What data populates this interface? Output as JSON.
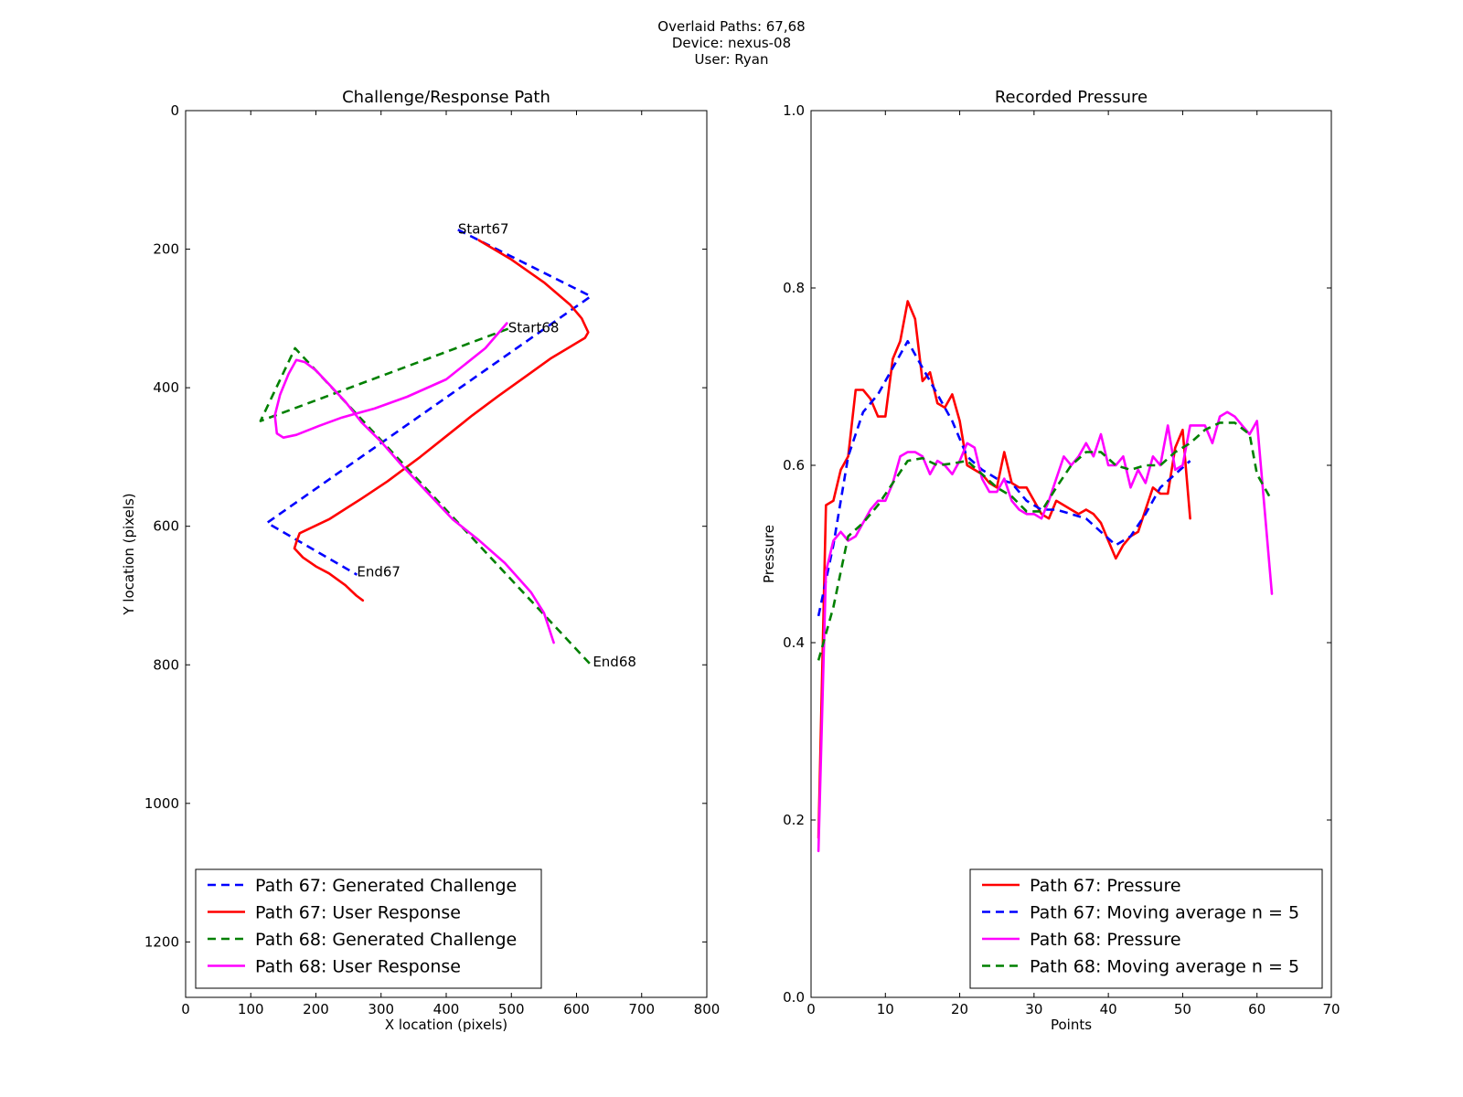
{
  "header": {
    "lines": [
      "Overlaid Paths: 67,68",
      "Device: nexus-08",
      "User: Ryan"
    ]
  },
  "chart_data": [
    {
      "type": "line",
      "title": "Challenge/Response Path",
      "xlabel": "X location (pixels)",
      "ylabel": "Y location (pixels)",
      "xlim": [
        0,
        800
      ],
      "ylim": [
        1280,
        0
      ],
      "y_inverted": true,
      "xticks": [
        0,
        100,
        200,
        300,
        400,
        500,
        600,
        700,
        800
      ],
      "yticks": [
        0,
        200,
        400,
        600,
        800,
        1000,
        1200
      ],
      "grid": false,
      "legend": "lower-left",
      "annotations": [
        {
          "text": "Start67",
          "x": 418,
          "y": 172
        },
        {
          "text": "Start68",
          "x": 495,
          "y": 315
        },
        {
          "text": "End67",
          "x": 263,
          "y": 667
        },
        {
          "text": "End68",
          "x": 625,
          "y": 797
        }
      ],
      "series": [
        {
          "name": "Path 67: Generated Challenge",
          "color": "#0000ff",
          "dashed": true,
          "x": [
            418,
            622,
            125,
            263
          ],
          "y": [
            172,
            268,
            595,
            670
          ]
        },
        {
          "name": "Path 67: User Response",
          "color": "#ff0000",
          "dashed": false,
          "x": [
            450,
            500,
            550,
            590,
            608,
            618,
            613,
            560,
            520,
            480,
            440,
            400,
            360,
            310,
            270,
            220,
            175,
            170,
            167,
            180,
            200,
            220,
            245,
            262,
            272
          ],
          "y": [
            187,
            215,
            248,
            280,
            300,
            320,
            328,
            358,
            385,
            412,
            440,
            470,
            500,
            535,
            560,
            590,
            610,
            623,
            632,
            645,
            658,
            668,
            685,
            700,
            707
          ]
        },
        {
          "name": "Path 68: Generated Challenge",
          "color": "#008000",
          "dashed": true,
          "x": [
            495,
            115,
            168,
            625
          ],
          "y": [
            315,
            448,
            343,
            803
          ]
        },
        {
          "name": "Path 68: User Response",
          "color": "#ff00ff",
          "dashed": false,
          "x": [
            493,
            460,
            400,
            340,
            290,
            240,
            205,
            170,
            150,
            140,
            137,
            145,
            158,
            170,
            183,
            200,
            220,
            245,
            270,
            300,
            330,
            370,
            410,
            450,
            490,
            530,
            550,
            565
          ],
          "y": [
            307,
            343,
            388,
            413,
            430,
            443,
            455,
            468,
            472,
            466,
            440,
            410,
            380,
            360,
            363,
            375,
            395,
            420,
            450,
            478,
            510,
            550,
            590,
            620,
            653,
            695,
            725,
            768
          ]
        }
      ]
    },
    {
      "type": "line",
      "title": "Recorded Pressure",
      "xlabel": "Points",
      "ylabel": "Pressure",
      "xlim": [
        0,
        70
      ],
      "ylim": [
        0.0,
        1.0
      ],
      "xticks": [
        0,
        10,
        20,
        30,
        40,
        50,
        60,
        70
      ],
      "yticks": [
        0.0,
        0.2,
        0.4,
        0.6,
        0.8,
        1.0
      ],
      "grid": false,
      "legend": "lower-right",
      "series": [
        {
          "name": "Path 67: Pressure",
          "color": "#ff0000",
          "dashed": false,
          "x": [
            1,
            2,
            3,
            4,
            5,
            6,
            7,
            8,
            9,
            10,
            11,
            12,
            13,
            14,
            15,
            16,
            17,
            18,
            19,
            20,
            21,
            22,
            23,
            24,
            25,
            26,
            27,
            28,
            29,
            30,
            31,
            32,
            33,
            34,
            35,
            36,
            37,
            38,
            39,
            40,
            41,
            42,
            43,
            44,
            45,
            46,
            47,
            48,
            49,
            50,
            51
          ],
          "y": [
            0.18,
            0.555,
            0.56,
            0.595,
            0.61,
            0.685,
            0.685,
            0.675,
            0.655,
            0.655,
            0.72,
            0.74,
            0.785,
            0.765,
            0.695,
            0.705,
            0.67,
            0.665,
            0.68,
            0.65,
            0.6,
            0.595,
            0.59,
            0.58,
            0.575,
            0.615,
            0.58,
            0.575,
            0.575,
            0.56,
            0.545,
            0.54,
            0.56,
            0.555,
            0.55,
            0.545,
            0.55,
            0.545,
            0.535,
            0.515,
            0.495,
            0.51,
            0.52,
            0.525,
            0.55,
            0.575,
            0.568,
            0.568,
            0.62,
            0.64,
            0.54
          ]
        },
        {
          "name": "Path 67: Moving average n = 5",
          "color": "#0000ff",
          "dashed": true,
          "x": [
            1,
            3,
            5,
            7,
            9,
            11,
            13,
            15,
            17,
            19,
            21,
            23,
            25,
            27,
            29,
            31,
            33,
            35,
            37,
            39,
            41,
            43,
            45,
            47,
            49,
            51
          ],
          "y": [
            0.43,
            0.51,
            0.61,
            0.66,
            0.68,
            0.71,
            0.74,
            0.71,
            0.68,
            0.65,
            0.61,
            0.595,
            0.585,
            0.58,
            0.56,
            0.55,
            0.55,
            0.545,
            0.54,
            0.525,
            0.51,
            0.52,
            0.545,
            0.575,
            0.59,
            0.605
          ]
        },
        {
          "name": "Path 68: Pressure",
          "color": "#ff00ff",
          "dashed": false,
          "x": [
            1,
            2,
            3,
            4,
            5,
            6,
            7,
            8,
            9,
            10,
            11,
            12,
            13,
            14,
            15,
            16,
            17,
            18,
            19,
            20,
            21,
            22,
            23,
            24,
            25,
            26,
            27,
            28,
            29,
            30,
            31,
            32,
            33,
            34,
            35,
            36,
            37,
            38,
            39,
            40,
            41,
            42,
            43,
            44,
            45,
            46,
            47,
            48,
            49,
            50,
            51,
            52,
            53,
            54,
            55,
            56,
            57,
            58,
            59,
            60,
            62
          ],
          "y": [
            0.165,
            0.48,
            0.515,
            0.525,
            0.515,
            0.52,
            0.535,
            0.55,
            0.56,
            0.56,
            0.58,
            0.61,
            0.615,
            0.615,
            0.61,
            0.59,
            0.605,
            0.6,
            0.59,
            0.605,
            0.625,
            0.62,
            0.585,
            0.57,
            0.57,
            0.585,
            0.56,
            0.55,
            0.545,
            0.545,
            0.54,
            0.56,
            0.585,
            0.61,
            0.6,
            0.61,
            0.625,
            0.61,
            0.635,
            0.6,
            0.6,
            0.61,
            0.575,
            0.595,
            0.58,
            0.61,
            0.6,
            0.645,
            0.595,
            0.6,
            0.645,
            0.645,
            0.645,
            0.625,
            0.655,
            0.66,
            0.655,
            0.645,
            0.635,
            0.65,
            0.455
          ]
        },
        {
          "name": "Path 68: Moving average n = 5",
          "color": "#008000",
          "dashed": true,
          "x": [
            1,
            3,
            5,
            7,
            9,
            11,
            13,
            15,
            17,
            19,
            21,
            23,
            25,
            27,
            29,
            31,
            33,
            35,
            37,
            39,
            41,
            43,
            45,
            47,
            49,
            51,
            53,
            55,
            57,
            59,
            60,
            62
          ],
          "y": [
            0.38,
            0.44,
            0.52,
            0.535,
            0.555,
            0.58,
            0.605,
            0.608,
            0.6,
            0.602,
            0.605,
            0.59,
            0.575,
            0.565,
            0.548,
            0.548,
            0.575,
            0.6,
            0.615,
            0.615,
            0.6,
            0.595,
            0.6,
            0.6,
            0.615,
            0.625,
            0.64,
            0.648,
            0.648,
            0.635,
            0.59,
            0.56
          ]
        }
      ]
    }
  ]
}
